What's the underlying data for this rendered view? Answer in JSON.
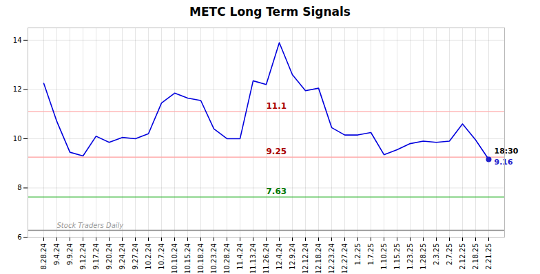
{
  "chart_data": {
    "type": "line",
    "title": "METC Long Term Signals",
    "categories": [
      "8.28.24",
      "9.4.24",
      "9.9.24",
      "9.12.24",
      "9.17.24",
      "9.20.24",
      "9.24.24",
      "9.27.24",
      "10.2.24",
      "10.7.24",
      "10.10.24",
      "10.15.24",
      "10.18.24",
      "10.23.24",
      "10.28.24",
      "11.4.24",
      "11.13.24",
      "11.26.24",
      "12.4.24",
      "12.9.24",
      "12.12.24",
      "12.18.24",
      "12.23.24",
      "12.27.24",
      "1.2.25",
      "1.7.25",
      "1.10.25",
      "1.15.25",
      "1.23.25",
      "1.28.25",
      "2.3.25",
      "2.7.25",
      "2.12.25",
      "2.18.25",
      "2.21.25"
    ],
    "values": [
      12.25,
      10.7,
      9.45,
      9.3,
      10.1,
      9.85,
      10.05,
      10.0,
      10.2,
      11.45,
      11.85,
      11.65,
      11.55,
      10.4,
      10.0,
      10.0,
      12.35,
      12.2,
      13.9,
      12.6,
      11.95,
      12.05,
      10.45,
      10.15,
      10.15,
      10.25,
      9.35,
      9.55,
      9.8,
      9.9,
      9.85,
      9.9,
      10.6,
      9.95,
      9.16
    ],
    "color": "#0000dd",
    "ylim": [
      6,
      14.5
    ],
    "yticks": [
      6,
      8,
      10,
      12,
      14
    ],
    "grid": true,
    "reference_lines": [
      {
        "value": 11.1,
        "label": "11.1",
        "color": "#ffaaaa",
        "label_color": "#aa0000"
      },
      {
        "value": 9.25,
        "label": "9.25",
        "color": "#ffaaaa",
        "label_color": "#aa0000"
      },
      {
        "value": 7.63,
        "label": "7.63",
        "color": "#44bb44",
        "label_color": "#007700"
      },
      {
        "value": 6.28,
        "color": "#888888"
      }
    ],
    "last_point": {
      "color": "#2222cc",
      "time_label": "18:30",
      "price_label": "9.16"
    },
    "watermark": {
      "text": "Stock Traders Daily",
      "y": 6.28
    }
  }
}
